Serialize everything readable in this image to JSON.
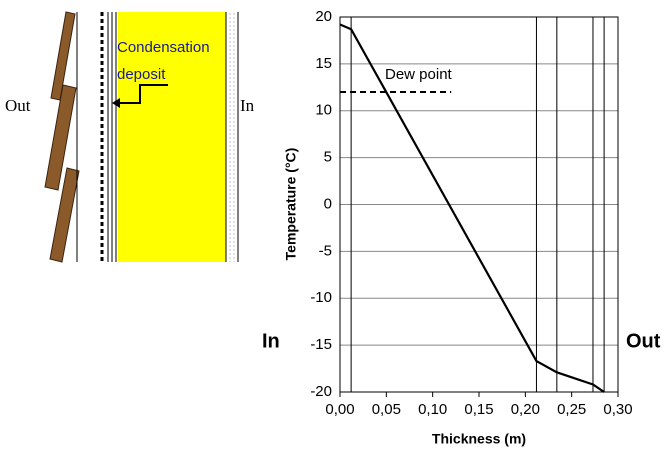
{
  "diagram": {
    "out_label": "Out",
    "in_label": "In",
    "deposit_label": [
      "Condensation",
      "deposit"
    ]
  },
  "chart_data": {
    "type": "line",
    "x_label": "Thickness (m)",
    "y_label": "Temperature (°C)",
    "in_label": "In",
    "out_label": "Out",
    "x": [
      0,
      0.012,
      0.212,
      0.234,
      0.273,
      0.285
    ],
    "values": [
      19.2,
      18.7,
      -16.7,
      -17.9,
      -19.2,
      -20
    ],
    "color": "#000000",
    "layer_boundaries": [
      0.012,
      0.212,
      0.234,
      0.273,
      0.285
    ],
    "dew_point": {
      "label": "Dew point",
      "y": 12,
      "x": [
        0,
        0.12
      ]
    },
    "xlim": [
      0,
      0.3
    ],
    "xticks": [
      {
        "value": 0,
        "label": "0,00"
      },
      {
        "value": 0.05,
        "label": "0,05"
      },
      {
        "value": 0.1,
        "label": "0,10"
      },
      {
        "value": 0.15,
        "label": "0,15"
      },
      {
        "value": 0.2,
        "label": "0,20"
      },
      {
        "value": 0.25,
        "label": "0,25"
      },
      {
        "value": 0.3,
        "label": "0,30"
      }
    ],
    "ylim": [
      -20,
      20
    ],
    "yticks": [
      -20,
      -15,
      -10,
      -5,
      0,
      5,
      10,
      15,
      20
    ],
    "grid": true
  }
}
